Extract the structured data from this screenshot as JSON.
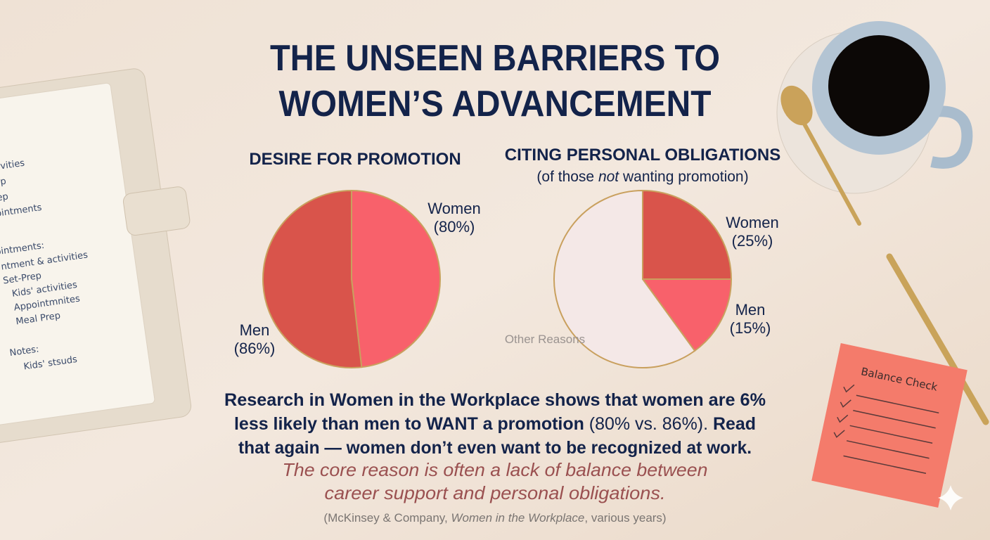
{
  "title": [
    "THE UNSEEN BARRIERS TO",
    "WOMEN’S ADVANCEMENT"
  ],
  "chart_data": [
    {
      "type": "pie",
      "title": "DESIRE FOR PROMOTION",
      "categories": [
        "Women",
        "Men"
      ],
      "values": [
        80,
        86
      ],
      "value_labels": [
        "(80%)",
        "(86%)"
      ],
      "colors": [
        "#f8616b",
        "#d9544b"
      ]
    },
    {
      "type": "pie",
      "title": "CITING PERSONAL OBLIGATIONS",
      "subtitle": [
        "(of those ",
        "not",
        " wanting promotion)"
      ],
      "categories": [
        "Women",
        "Men",
        "Other Reasons"
      ],
      "values": [
        25,
        15,
        60
      ],
      "value_labels": [
        "(25%)",
        "(15%)",
        null
      ],
      "colors": [
        "#d9544b",
        "#f8616b",
        "#f4e8e7"
      ]
    }
  ],
  "body": [
    [
      {
        "text": "Research in Women in the Workplace shows that women are 6%",
        "bold": true
      }
    ],
    [
      {
        "text": "less likely than men to WANT a promotion",
        "bold": true
      },
      {
        "text": " (80% vs. 86%).",
        "bold": false
      },
      {
        "text": " Read",
        "bold": true
      }
    ],
    [
      {
        "text": "that again — women don’t even want to be recognized at work.",
        "bold": true
      }
    ]
  ],
  "note": [
    "The core reason is often a lack of balance between",
    "career support and personal obligations."
  ],
  "citation": [
    "(McKinsey & Company, ",
    "Women in the Workplace",
    ", various years)"
  ],
  "notebook": [
    "activities",
    "Prep",
    "Prep",
    "pointments",
    "ointments:",
    "ntment & activities",
    "Set-Prep",
    "Kids' activities",
    "Appointmnites",
    "Meal Prep",
    "Notes:",
    "Kids' stsuds"
  ],
  "sticky_note": "Balance Check"
}
